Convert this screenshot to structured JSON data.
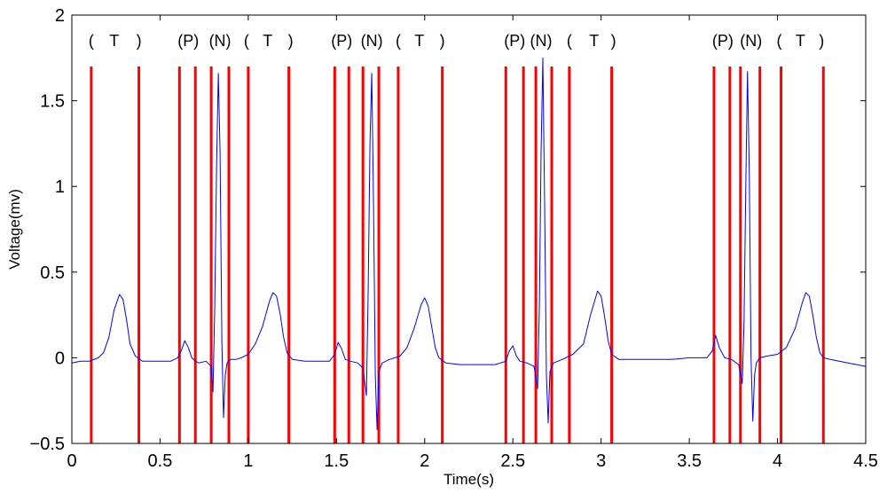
{
  "chart_data": {
    "type": "line",
    "title": "",
    "xlabel": "Time(s)",
    "ylabel": "Voltage(mv)",
    "xlim": [
      0,
      4.5
    ],
    "ylim": [
      -0.5,
      2
    ],
    "grid": false,
    "x_ticks": [
      0,
      0.5,
      1,
      1.5,
      2,
      2.5,
      3,
      3.5,
      4,
      4.5
    ],
    "x_tick_labels": [
      "0",
      "0.5",
      "1",
      "1.5",
      "2",
      "2.5",
      "3",
      "3.5",
      "4",
      "4.5"
    ],
    "y_ticks": [
      -0.5,
      0,
      0.5,
      1,
      1.5,
      2
    ],
    "y_tick_labels": [
      "−0.5",
      "0",
      "0.5",
      "1",
      "1.5",
      "2"
    ],
    "colors": {
      "signal": "#0000ff",
      "boundary": "#ff0000",
      "axis": "#000000"
    },
    "series": [
      {
        "x": [
          0.0,
          0.05,
          0.1,
          0.15,
          0.18,
          0.21,
          0.24,
          0.27,
          0.29,
          0.31,
          0.33,
          0.36,
          0.4,
          0.48,
          0.56,
          0.6,
          0.62,
          0.64,
          0.66,
          0.68,
          0.7,
          0.72,
          0.76,
          0.79,
          0.8,
          0.81,
          0.82,
          0.83,
          0.84,
          0.85,
          0.86,
          0.87,
          0.88,
          0.9,
          0.93,
          0.96,
          1.0,
          1.04,
          1.08,
          1.12,
          1.14,
          1.16,
          1.18,
          1.2,
          1.22,
          1.25,
          1.32,
          1.4,
          1.46,
          1.49,
          1.51,
          1.53,
          1.55,
          1.58,
          1.62,
          1.65,
          1.67,
          1.68,
          1.69,
          1.7,
          1.71,
          1.72,
          1.73,
          1.74,
          1.76,
          1.8,
          1.86,
          1.9,
          1.94,
          1.98,
          2.0,
          2.02,
          2.04,
          2.06,
          2.08,
          2.12,
          2.2,
          2.3,
          2.4,
          2.46,
          2.48,
          2.5,
          2.52,
          2.54,
          2.58,
          2.62,
          2.64,
          2.65,
          2.66,
          2.67,
          2.68,
          2.69,
          2.7,
          2.71,
          2.73,
          2.78,
          2.84,
          2.9,
          2.94,
          2.98,
          3.0,
          3.02,
          3.04,
          3.06,
          3.1,
          3.2,
          3.3,
          3.4,
          3.5,
          3.6,
          3.63,
          3.65,
          3.67,
          3.7,
          3.74,
          3.78,
          3.8,
          3.81,
          3.82,
          3.83,
          3.84,
          3.85,
          3.86,
          3.87,
          3.88,
          3.9,
          3.94,
          4.0,
          4.05,
          4.1,
          4.14,
          4.16,
          4.18,
          4.2,
          4.22,
          4.24,
          4.26,
          4.3,
          4.4,
          4.5
        ],
        "y": [
          -0.03,
          -0.02,
          -0.02,
          0.0,
          0.03,
          0.12,
          0.28,
          0.37,
          0.34,
          0.22,
          0.08,
          0.01,
          -0.02,
          -0.02,
          -0.02,
          0.0,
          0.04,
          0.1,
          0.06,
          0.0,
          -0.02,
          -0.03,
          -0.02,
          -0.05,
          -0.2,
          0.3,
          1.1,
          1.66,
          1.2,
          0.1,
          -0.35,
          -0.1,
          -0.03,
          -0.01,
          -0.01,
          0.0,
          0.02,
          0.08,
          0.18,
          0.33,
          0.38,
          0.36,
          0.26,
          0.12,
          0.03,
          -0.01,
          -0.02,
          -0.02,
          -0.02,
          0.02,
          0.09,
          0.05,
          -0.01,
          -0.02,
          -0.03,
          -0.06,
          -0.22,
          0.4,
          1.25,
          1.66,
          0.9,
          -0.1,
          -0.42,
          -0.08,
          -0.03,
          -0.01,
          0.01,
          0.06,
          0.17,
          0.31,
          0.35,
          0.3,
          0.18,
          0.06,
          0.0,
          -0.03,
          -0.04,
          -0.04,
          -0.04,
          -0.02,
          0.04,
          0.07,
          0.01,
          -0.02,
          -0.03,
          -0.05,
          -0.18,
          0.3,
          1.2,
          1.75,
          0.9,
          -0.1,
          -0.38,
          -0.08,
          -0.03,
          -0.01,
          0.02,
          0.08,
          0.25,
          0.39,
          0.36,
          0.24,
          0.1,
          0.02,
          -0.01,
          -0.01,
          -0.01,
          -0.01,
          0.0,
          0.0,
          0.04,
          0.13,
          0.06,
          0.0,
          -0.01,
          -0.04,
          -0.15,
          0.2,
          1.0,
          1.67,
          1.1,
          0.0,
          -0.37,
          -0.1,
          -0.03,
          0.0,
          0.01,
          0.02,
          0.06,
          0.17,
          0.32,
          0.38,
          0.36,
          0.25,
          0.12,
          0.03,
          0.0,
          -0.01,
          -0.03,
          -0.05
        ]
      }
    ],
    "boundaries": {
      "x": [
        0.11,
        0.38,
        0.61,
        0.7,
        0.79,
        0.89,
        1.0,
        1.23,
        1.49,
        1.57,
        1.65,
        1.74,
        1.85,
        2.1,
        2.46,
        2.56,
        2.63,
        2.72,
        2.82,
        3.06,
        3.64,
        3.73,
        3.79,
        3.9,
        4.02,
        4.26
      ],
      "top": 1.7,
      "bottom": -0.5
    },
    "annotations": [
      {
        "text": "(",
        "x": 0.11
      },
      {
        "text": "T",
        "x": 0.24
      },
      {
        "text": ")",
        "x": 0.38
      },
      {
        "text": "(P)",
        "x": 0.66
      },
      {
        "text": "(N)",
        "x": 0.84
      },
      {
        "text": "(",
        "x": 0.99
      },
      {
        "text": "T",
        "x": 1.11
      },
      {
        "text": ")",
        "x": 1.24
      },
      {
        "text": "(P)",
        "x": 1.53
      },
      {
        "text": "(N)",
        "x": 1.7
      },
      {
        "text": "(",
        "x": 1.85
      },
      {
        "text": "T",
        "x": 1.97
      },
      {
        "text": ")",
        "x": 2.1
      },
      {
        "text": "(P)",
        "x": 2.51
      },
      {
        "text": "(N)",
        "x": 2.66
      },
      {
        "text": "(",
        "x": 2.82
      },
      {
        "text": "T",
        "x": 2.96
      },
      {
        "text": ")",
        "x": 3.07
      },
      {
        "text": "(P)",
        "x": 3.69
      },
      {
        "text": "(N)",
        "x": 3.85
      },
      {
        "text": "(",
        "x": 4.01
      },
      {
        "text": "T",
        "x": 4.13
      },
      {
        "text": ")",
        "x": 4.25
      }
    ],
    "annotation_y": 1.82
  }
}
